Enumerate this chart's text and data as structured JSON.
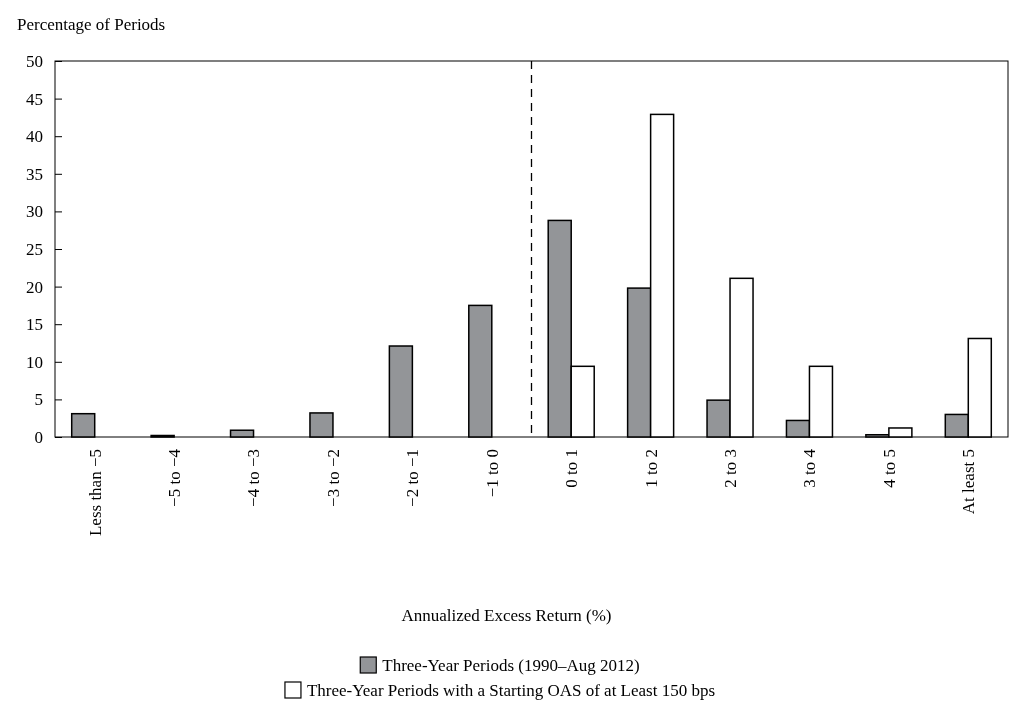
{
  "chart_data": {
    "type": "bar",
    "ylabel": "Percentage of Periods",
    "xlabel": "Annualized Excess Return (%)",
    "categories": [
      "Less than −5",
      "−5 to −4",
      "−4 to −3",
      "−3 to −2",
      "−2 to −1",
      "−1 to 0",
      "0 to 1",
      "1 to 2",
      "2 to 3",
      "3 to 4",
      "4 to 5",
      "At least 5"
    ],
    "series": [
      {
        "name": "Three-Year Periods (1990–Aug 2012)",
        "color": "#939598",
        "values": [
          3.1,
          0.2,
          0.9,
          3.2,
          12.1,
          17.5,
          28.8,
          19.8,
          4.9,
          2.2,
          0.3,
          3.0
        ]
      },
      {
        "name": "Three-Year Periods with a Starting OAS of at Least 150 bps",
        "color": "#ffffff",
        "values": [
          null,
          null,
          null,
          null,
          null,
          null,
          9.4,
          42.9,
          21.1,
          9.4,
          1.2,
          13.1
        ]
      }
    ],
    "ylim": [
      0,
      50
    ],
    "yticks": [
      0,
      5,
      10,
      15,
      20,
      25,
      30,
      35,
      40,
      45,
      50
    ],
    "grid": false,
    "legend": "bottom"
  }
}
